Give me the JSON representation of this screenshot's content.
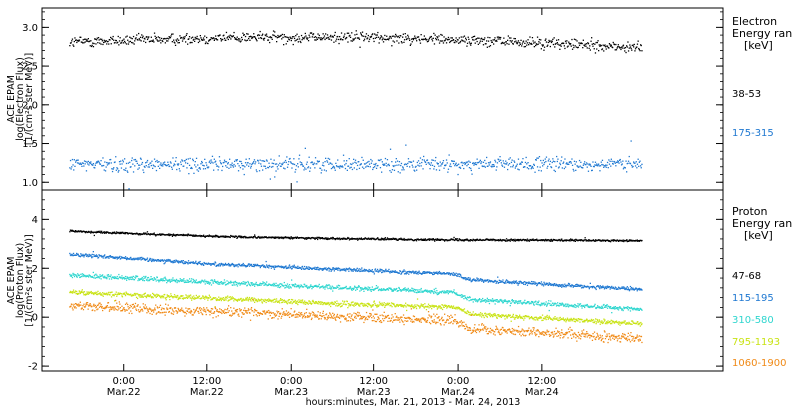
{
  "chart_data": [
    {
      "type": "scatter",
      "ylabel": [
        "ACE EPAM",
        "log(Electron Flux)",
        "[1/(cm²s ster MeV)]"
      ],
      "ylim": [
        0.9,
        3.25
      ],
      "yticks": [
        "1.0",
        "1.5",
        "2.0",
        "2.5",
        "3.0"
      ],
      "ytick_values": [
        1.0,
        1.5,
        2.0,
        2.5,
        3.0
      ],
      "legend": {
        "title": [
          "Electron",
          "Energy ran",
          "[keV]"
        ]
      },
      "series": [
        {
          "name": "38-53",
          "color": "#000000",
          "profile": [
            [
              0,
              2.82
            ],
            [
              0.3,
              2.88
            ],
            [
              0.55,
              2.88
            ],
            [
              0.75,
              2.83
            ],
            [
              0.9,
              2.78
            ],
            [
              1,
              2.74
            ]
          ],
          "scatter": 0.07
        },
        {
          "name": "175-315",
          "color": "#1f78d1",
          "profile": [
            [
              0,
              1.24
            ],
            [
              0.5,
              1.24
            ],
            [
              1,
              1.24
            ]
          ],
          "scatter": 0.09
        }
      ]
    },
    {
      "type": "line",
      "ylabel": [
        "ACE EPAM",
        "log(Proton Flux)",
        "[1/(cm²s ster MeV)]"
      ],
      "ylim": [
        -2.2,
        5.2
      ],
      "yticks": [
        "-2",
        "0",
        "2",
        "4"
      ],
      "ytick_values": [
        -2,
        0,
        2,
        4
      ],
      "legend": {
        "title": [
          "Proton",
          "Energy ran",
          "[keV]"
        ]
      },
      "series": [
        {
          "name": "47-68",
          "color": "#000000",
          "profile": [
            [
              0,
              3.55
            ],
            [
              0.1,
              3.45
            ],
            [
              0.3,
              3.3
            ],
            [
              0.6,
              3.2
            ],
            [
              1,
              3.15
            ]
          ],
          "scatter": 0.04
        },
        {
          "name": "115-195",
          "color": "#1f78d1",
          "profile": [
            [
              0,
              2.6
            ],
            [
              0.25,
              2.2
            ],
            [
              0.5,
              1.95
            ],
            [
              0.67,
              1.8
            ],
            [
              0.7,
              1.55
            ],
            [
              1,
              1.15
            ]
          ],
          "scatter": 0.07
        },
        {
          "name": "310-580",
          "color": "#2fd6cf",
          "profile": [
            [
              0,
              1.75
            ],
            [
              0.25,
              1.45
            ],
            [
              0.5,
              1.2
            ],
            [
              0.67,
              1.05
            ],
            [
              0.7,
              0.75
            ],
            [
              1,
              0.35
            ]
          ],
          "scatter": 0.09
        },
        {
          "name": "795-1193",
          "color": "#c9e316",
          "profile": [
            [
              0,
              1.05
            ],
            [
              0.25,
              0.8
            ],
            [
              0.5,
              0.55
            ],
            [
              0.67,
              0.45
            ],
            [
              0.7,
              0.15
            ],
            [
              1,
              -0.25
            ]
          ],
          "scatter": 0.1
        },
        {
          "name": "1060-1900",
          "color": "#f08a17",
          "profile": [
            [
              0,
              0.5
            ],
            [
              0.25,
              0.25
            ],
            [
              0.5,
              0.05
            ],
            [
              0.67,
              -0.1
            ],
            [
              0.7,
              -0.45
            ],
            [
              1,
              -0.85
            ]
          ],
          "scatter": 0.2
        }
      ]
    }
  ],
  "x_axis": {
    "ticks": [
      {
        "time": "0:00",
        "date": "Mar.22",
        "frac": 0.12
      },
      {
        "time": "12:00",
        "date": "Mar.22",
        "frac": 0.242
      },
      {
        "time": "0:00",
        "date": "Mar.23",
        "frac": 0.366
      },
      {
        "time": "12:00",
        "date": "Mar.23",
        "frac": 0.487
      },
      {
        "time": "0:00",
        "date": "Mar.24",
        "frac": 0.611
      },
      {
        "time": "12:00",
        "date": "Mar.24",
        "frac": 0.734
      }
    ],
    "data_end_frac": 0.88,
    "label": "hours:minutes, Mar. 21, 2013 - Mar. 24, 2013"
  }
}
